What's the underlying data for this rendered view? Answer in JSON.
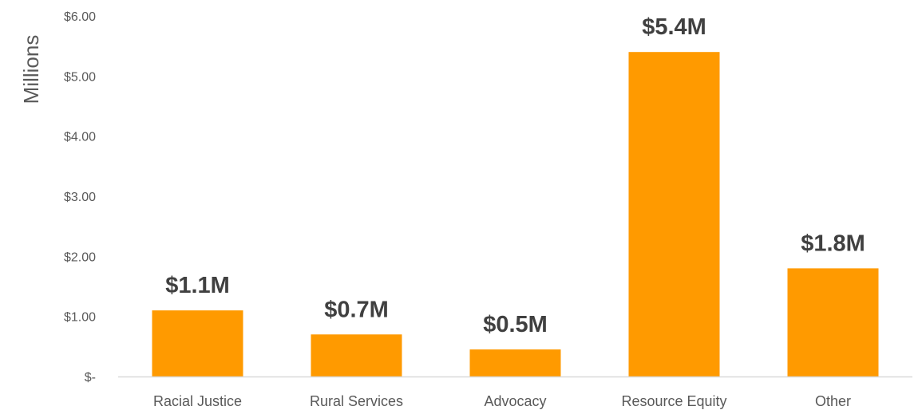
{
  "chart_data": {
    "type": "bar",
    "title": "",
    "xlabel": "",
    "ylabel": "Millions",
    "categories": [
      "Racial Justice",
      "Rural Services",
      "Advocacy",
      "Resource Equity",
      "Other"
    ],
    "values": [
      1.1,
      0.7,
      0.45,
      5.4,
      1.8
    ],
    "data_labels": [
      "$1.1M",
      "$0.7M",
      "$0.5M",
      "$5.4M",
      "$1.8M"
    ],
    "ylim": [
      0,
      6
    ],
    "yticks": [
      0,
      1,
      2,
      3,
      4,
      5,
      6
    ],
    "ytick_labels": [
      "$-",
      "$1.00",
      "$2.00",
      "$3.00",
      "$4.00",
      "$5.00",
      "$6.00"
    ],
    "grid": false,
    "legend": "none",
    "bar_color": "#FF9A00",
    "axis_color": "#D9D9D9"
  }
}
